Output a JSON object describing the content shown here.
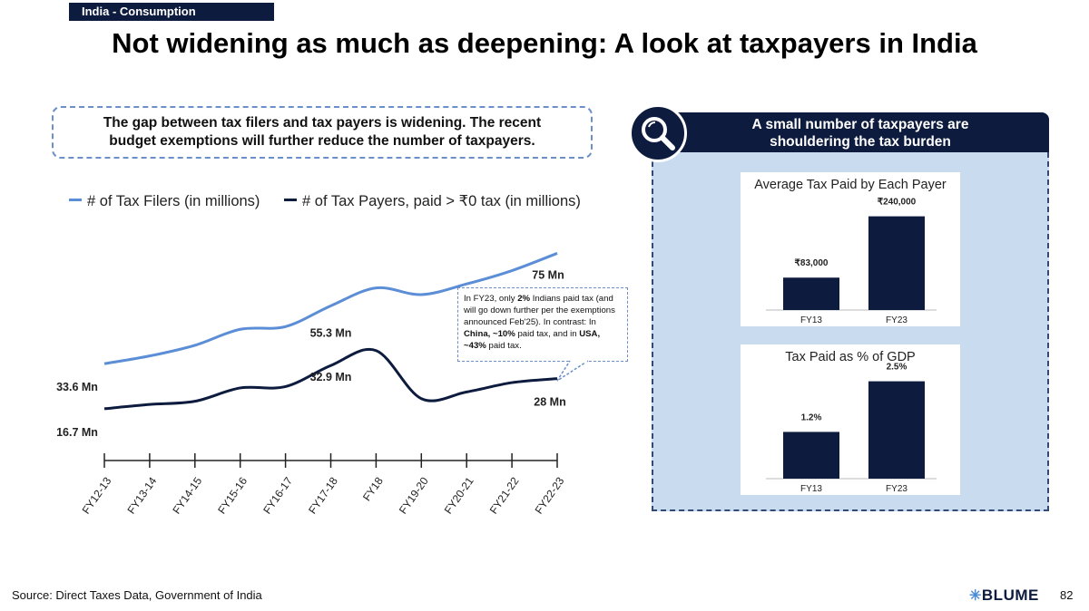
{
  "header": {
    "tag": "India - Consumption",
    "title": "Not widening as much as deepening: A look at taxpayers in India"
  },
  "callout": {
    "line1": "The gap between tax filers and tax payers is widening. The recent",
    "line2": "budget exemptions will further reduce the number of taxpayers."
  },
  "chart_data": [
    {
      "type": "line",
      "title": "",
      "xlabel": "",
      "ylabel": "",
      "categories": [
        "FY12-13",
        "FY13-14",
        "FY14-15",
        "FY15-16",
        "FY16-17",
        "FY17-18",
        "FY18",
        "FY19-20",
        "FY20-21",
        "FY21-22",
        "FY22-23"
      ],
      "series": [
        {
          "name": "# of Tax Filers (in millions)",
          "color": "#5b8ed6",
          "values": [
            33.6,
            36.5,
            40.5,
            46.5,
            47.5,
            55.3,
            62.0,
            59.5,
            63.5,
            68.5,
            75.0
          ]
        },
        {
          "name": "# of Tax Payers, paid > ₹0 tax (in millions)",
          "color": "#0d1b3e",
          "values": [
            16.7,
            18.3,
            19.5,
            24.5,
            25.0,
            32.9,
            38.5,
            20.5,
            23.0,
            26.5,
            28.0
          ]
        }
      ],
      "data_labels": [
        {
          "text": "33.6 Mn",
          "series": 0,
          "index": 0
        },
        {
          "text": "16.7 Mn",
          "series": 1,
          "index": 0
        },
        {
          "text": "55.3 Mn",
          "series": 0,
          "index": 5
        },
        {
          "text": "32.9 Mn",
          "series": 1,
          "index": 5
        },
        {
          "text": "75 Mn",
          "series": 0,
          "index": 10
        },
        {
          "text": "28 Mn",
          "series": 1,
          "index": 10
        }
      ],
      "ylim": [
        0,
        85
      ],
      "grid": false,
      "legend": "top"
    },
    {
      "type": "bar",
      "title": "Average Tax Paid by Each Payer",
      "categories": [
        "FY13",
        "FY23"
      ],
      "values": [
        83000,
        240000
      ],
      "value_labels": [
        "₹83,000",
        "₹240,000"
      ],
      "ylim": [
        0,
        260000
      ],
      "color": "#0d1b3e"
    },
    {
      "type": "bar",
      "title": "Tax Paid as % of GDP",
      "categories": [
        "FY13",
        "FY23"
      ],
      "values": [
        1.2,
        2.5
      ],
      "value_labels": [
        "1.2%",
        "2.5%"
      ],
      "ylim": [
        0,
        2.7
      ],
      "color": "#0d1b3e"
    }
  ],
  "note": {
    "p1": "In FY23, only ",
    "b1": "2%",
    "p2": " Indians paid tax (and will go down further per the exemptions announced Feb'25). In contrast: In ",
    "b2": "China, ~10%",
    "p3": " paid tax, and in ",
    "b3": "USA, ~43%",
    "p4": " paid tax."
  },
  "panel": {
    "title_line1": "A small number of taxpayers are",
    "title_line2": "shouldering the tax burden",
    "icon": "magnifier-icon"
  },
  "footer": {
    "source": "Source: Direct Taxes Data, Government of India",
    "logo": "BLUME",
    "page": "82"
  }
}
